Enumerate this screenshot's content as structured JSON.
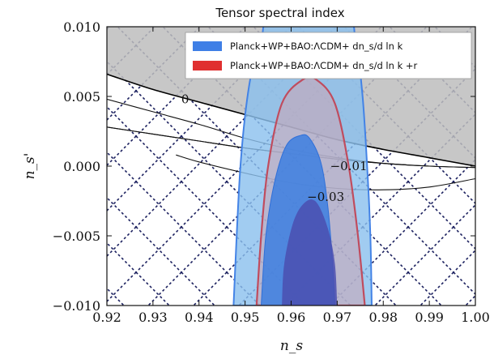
{
  "chart_data": {
    "type": "area",
    "title": "Tensor spectral index",
    "xlabel": "n_s",
    "ylabel": "n_s'",
    "xlim": [
      0.92,
      1.0
    ],
    "ylim": [
      -0.01,
      0.01
    ],
    "x_ticks": [
      "0.92",
      "0.93",
      "0.94",
      "0.95",
      "0.96",
      "0.97",
      "0.98",
      "0.99",
      "1.00"
    ],
    "y_ticks": [
      "0.010",
      "0.005",
      "0.000",
      "−0.005",
      "−0.010"
    ],
    "legend_position": "top-right",
    "legend": [
      {
        "label": "Planck+WP+BAO:ΛCDM+ dn_s/d ln k",
        "color": "#3f7fe6"
      },
      {
        "label": "Planck+WP+BAO:ΛCDM+ dn_s/d ln k +r",
        "color": "#e03030"
      }
    ],
    "series": [
      {
        "name": "Planck+WP+BAO:ΛCDM+ dn_s/d ln k",
        "color": "#3f7fe6",
        "outer_contour": [
          [
            0.9475,
            -0.01
          ],
          [
            0.949,
            0.0
          ],
          [
            0.951,
            0.006
          ],
          [
            0.9535,
            0.009
          ],
          [
            0.956,
            0.0105
          ],
          [
            0.9715,
            0.0105
          ],
          [
            0.974,
            0.009
          ],
          [
            0.9755,
            0.005
          ],
          [
            0.9765,
            0.0
          ],
          [
            0.9772,
            -0.005
          ],
          [
            0.9775,
            -0.01
          ]
        ],
        "inner_contour": [
          [
            0.9535,
            -0.01
          ],
          [
            0.9545,
            -0.005
          ],
          [
            0.9565,
            -0.001
          ],
          [
            0.959,
            0.0015
          ],
          [
            0.962,
            0.0022
          ],
          [
            0.964,
            0.002
          ],
          [
            0.9665,
            0.0002
          ],
          [
            0.968,
            -0.003
          ],
          [
            0.969,
            -0.007
          ],
          [
            0.9695,
            -0.01
          ]
        ]
      },
      {
        "name": "Planck+WP+BAO:ΛCDM+ dn_s/d ln k +r",
        "color": "#e03030",
        "outer_contour": [
          [
            0.9525,
            -0.01
          ],
          [
            0.9535,
            -0.005
          ],
          [
            0.955,
            0.0
          ],
          [
            0.958,
            0.0045
          ],
          [
            0.9625,
            0.0062
          ],
          [
            0.9655,
            0.0062
          ],
          [
            0.9695,
            0.0045
          ],
          [
            0.9725,
            0.0
          ],
          [
            0.9745,
            -0.005
          ],
          [
            0.976,
            -0.01
          ]
        ],
        "inner_contour": [
          [
            0.958,
            -0.01
          ],
          [
            0.9585,
            -0.007
          ],
          [
            0.9605,
            -0.004
          ],
          [
            0.963,
            -0.0026
          ],
          [
            0.9655,
            -0.0026
          ],
          [
            0.968,
            -0.0045
          ],
          [
            0.9695,
            -0.007
          ],
          [
            0.97,
            -0.01
          ]
        ]
      }
    ],
    "grey_region_boundary": [
      [
        0.92,
        0.0066
      ],
      [
        0.93,
        0.0055
      ],
      [
        0.94,
        0.0046
      ],
      [
        0.95,
        0.0037
      ],
      [
        0.96,
        0.0028
      ],
      [
        0.97,
        0.0019
      ],
      [
        0.98,
        0.0012
      ],
      [
        0.99,
        0.0006
      ],
      [
        1.0,
        0.0
      ]
    ],
    "contours": [
      {
        "label": "0",
        "label_at": [
          0.937,
          0.0045
        ],
        "points": [
          [
            0.92,
            0.0066
          ],
          [
            0.93,
            0.0055
          ],
          [
            0.94,
            0.0046
          ],
          [
            0.95,
            0.0037
          ],
          [
            0.96,
            0.0028
          ],
          [
            0.97,
            0.0019
          ],
          [
            0.98,
            0.0012
          ],
          [
            0.99,
            0.0006
          ],
          [
            1.0,
            0.0
          ]
        ]
      },
      {
        "label": "",
        "points": [
          [
            0.92,
            0.0048
          ],
          [
            0.93,
            0.0039
          ],
          [
            0.94,
            0.003
          ],
          [
            0.95,
            0.002
          ],
          [
            0.96,
            0.0012
          ],
          [
            0.97,
            0.0006
          ],
          [
            0.98,
            0.0002
          ],
          [
            0.99,
            0.0
          ],
          [
            1.0,
            -0.0001
          ]
        ]
      },
      {
        "label": "",
        "points": [
          [
            0.92,
            0.0028
          ],
          [
            0.93,
            0.0023
          ],
          [
            0.94,
            0.0018
          ],
          [
            0.95,
            0.0013
          ],
          [
            0.96,
            0.0009
          ],
          [
            0.97,
            0.0005
          ],
          [
            0.98,
            0.0002
          ],
          [
            0.99,
            0.0
          ],
          [
            1.0,
            -0.0001
          ]
        ]
      },
      {
        "label": "−0.01",
        "label_at": [
          0.9725,
          -0.0003
        ],
        "points": [
          [
            0.92,
            0.0028
          ],
          [
            0.93,
            0.0023
          ],
          [
            0.94,
            0.0018
          ],
          [
            0.95,
            0.0013
          ],
          [
            0.96,
            0.0009
          ],
          [
            0.97,
            0.0005
          ],
          [
            0.98,
            0.0002
          ],
          [
            0.985,
            0.0001
          ]
        ]
      },
      {
        "label": "",
        "points": [
          [
            0.935,
            0.0008
          ],
          [
            0.94,
            0.0003
          ],
          [
            0.95,
            -0.0005
          ],
          [
            0.96,
            -0.0012
          ],
          [
            0.97,
            -0.0016
          ],
          [
            0.98,
            -0.0017
          ],
          [
            0.99,
            -0.0015
          ],
          [
            1.0,
            -0.0009
          ]
        ]
      },
      {
        "label": "−0.03",
        "label_at": [
          0.9675,
          -0.0025
        ],
        "points": []
      }
    ]
  }
}
